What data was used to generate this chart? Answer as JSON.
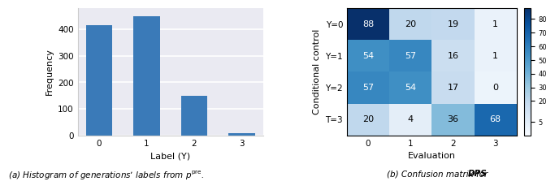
{
  "hist_labels": [
    0,
    1,
    2,
    3
  ],
  "hist_values": [
    415,
    450,
    148,
    7
  ],
  "hist_bar_color": "#3a7ab8",
  "hist_xlabel": "Label (Y)",
  "hist_ylabel": "Frequency",
  "conf_matrix": [
    [
      88,
      20,
      19,
      1
    ],
    [
      54,
      57,
      16,
      1
    ],
    [
      57,
      54,
      17,
      0
    ],
    [
      20,
      4,
      36,
      68
    ]
  ],
  "conf_xlabel": "Evaluation",
  "conf_ylabel": "Conditional control",
  "conf_ytick_labels": [
    "Y=0",
    "Y=1",
    "Y=2",
    "T=3"
  ],
  "conf_xtick_labels": [
    "0",
    "1",
    "2",
    "3"
  ],
  "colorbar_ticks": [
    5,
    20,
    30,
    40,
    50,
    60,
    70,
    80
  ],
  "background_color": "#eaeaf2",
  "fig_background": "#ffffff",
  "caption_left": "(a) Histogram of generations’ labels from $p^{\\mathrm{pre}}$.",
  "caption_right": "(b) Confusion matrix for \\textbf{DPS}."
}
